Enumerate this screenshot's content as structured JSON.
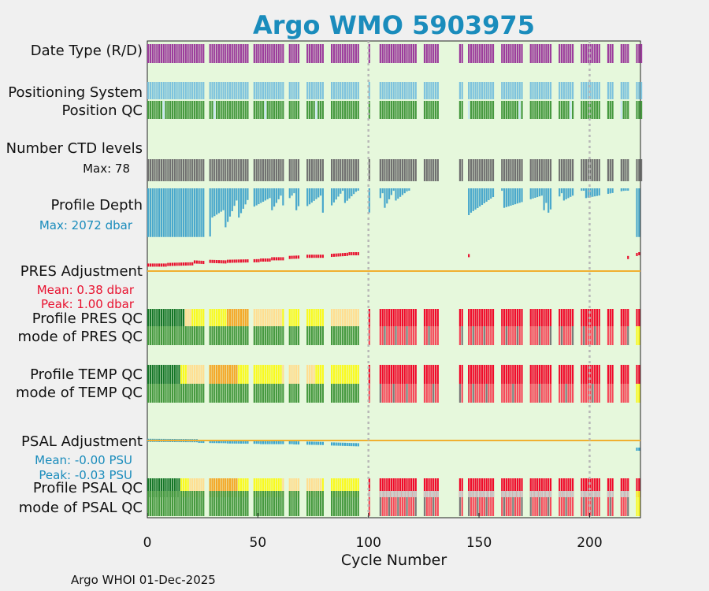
{
  "chart_data": {
    "type": "bar",
    "title": "Argo WMO 5903975",
    "xlabel": "Cycle Number",
    "xlim": [
      0,
      223
    ],
    "xticks": [
      0,
      50,
      100,
      150,
      200
    ],
    "gridlines_x": [
      100,
      200
    ],
    "footer": "Argo WHOI 01-Dec-2025",
    "rows": {
      "date_type": "Date Type (R/D)",
      "positioning": "Positioning System",
      "position_qc": "Position QC",
      "ctd_levels": "Number CTD levels",
      "ctd_max": "Max: 78",
      "profile_depth": "Profile Depth",
      "depth_max": "Max: 2072 dbar",
      "pres_adj": "PRES Adjustment",
      "pres_mean": "Mean: 0.38 dbar",
      "pres_peak": "Peak: 1.00 dbar",
      "profile_pres_qc": "Profile PRES QC",
      "mode_pres_qc": "mode of PRES QC",
      "profile_temp_qc": "Profile TEMP QC",
      "mode_temp_qc": "mode of TEMP QC",
      "psal_adj": "PSAL Adjustment",
      "psal_mean": "Mean: -0.00 PSU",
      "psal_peak": "Peak: -0.03 PSU",
      "profile_psal_qc": "Profile PSAL QC",
      "mode_psal_qc": "mode of PSAL QC"
    },
    "missing_ranges": [
      [
        26,
        27
      ],
      [
        46,
        47
      ],
      [
        62,
        63
      ],
      [
        69,
        71
      ],
      [
        80,
        82
      ],
      [
        96,
        99
      ],
      [
        101,
        104
      ],
      [
        122,
        124
      ],
      [
        132,
        140
      ],
      [
        143,
        144
      ],
      [
        157,
        159
      ],
      [
        170,
        172
      ],
      [
        183,
        185
      ],
      [
        193,
        195
      ],
      [
        205,
        207
      ],
      [
        211,
        213
      ],
      [
        218,
        220
      ]
    ],
    "profile_depth_dbar": [
      [
        0,
        2000,
        25,
        2000
      ],
      [
        26,
        1990,
        28,
        1980
      ],
      [
        29,
        1200,
        34,
        900
      ],
      [
        35,
        1600,
        40,
        500
      ],
      [
        41,
        1200,
        46,
        300
      ],
      [
        47,
        800,
        55,
        400
      ],
      [
        56,
        900,
        60,
        300
      ],
      [
        61,
        700,
        66,
        200
      ],
      [
        67,
        900,
        70,
        400
      ],
      [
        71,
        800,
        78,
        300
      ],
      [
        79,
        1000,
        80,
        600
      ],
      [
        83,
        700,
        88,
        100
      ],
      [
        89,
        600,
        95,
        50
      ],
      [
        100,
        1000,
        100,
        1000
      ],
      [
        104,
        600,
        106,
        200
      ],
      [
        107,
        800,
        111,
        100
      ],
      [
        112,
        500,
        118,
        50
      ],
      [
        145,
        1100,
        145,
        1100
      ],
      [
        146,
        1000,
        160,
        100
      ],
      [
        161,
        800,
        178,
        300
      ],
      [
        179,
        900,
        180,
        600
      ],
      [
        181,
        1000,
        187,
        200
      ],
      [
        188,
        500,
        197,
        50
      ],
      [
        198,
        400,
        218,
        50
      ],
      [
        220,
        2000,
        222,
        2000
      ]
    ],
    "date_type_colors": {
      "R": "#9c3d9c",
      "D": "#e6f8dc"
    },
    "positioning_color": "#7ec3dd",
    "position_qc_colors": {
      "good": "#46993f",
      "interpolated": "#c6e6f2"
    },
    "ctd_levels_color": "#707070",
    "profile_depth_color": "#4aa8cc",
    "pres_adjustment_dbar": [
      [
        0,
        0.1,
        8,
        0.1
      ],
      [
        9,
        0.15,
        20,
        0.2
      ],
      [
        21,
        0.35,
        26,
        0.3
      ],
      [
        27,
        0.4,
        35,
        0.35
      ],
      [
        36,
        0.4,
        50,
        0.45
      ],
      [
        51,
        0.5,
        55,
        0.5
      ],
      [
        56,
        0.6,
        62,
        0.6
      ],
      [
        63,
        0.7,
        70,
        0.75
      ],
      [
        71,
        0.8,
        80,
        0.8
      ],
      [
        81,
        0.85,
        90,
        0.95
      ],
      [
        91,
        1.0,
        98,
        1.0
      ],
      [
        143,
        0.8,
        145,
        0.85
      ],
      [
        217,
        0.7,
        222,
        1.0
      ]
    ],
    "psal_adjustment_psu": [
      [
        0,
        -0.002,
        22,
        -0.003
      ],
      [
        23,
        -0.005,
        35,
        -0.006
      ],
      [
        36,
        -0.007,
        50,
        -0.008
      ],
      [
        51,
        -0.009,
        65,
        -0.009
      ],
      [
        66,
        -0.01,
        80,
        -0.012
      ],
      [
        81,
        -0.013,
        95,
        -0.016
      ],
      [
        96,
        -0.017,
        99,
        -0.018
      ],
      [
        219,
        -0.03,
        222,
        -0.03
      ]
    ],
    "qc_colors": {
      "1": "#167628",
      "2": "#fafa1e",
      "3": "#f5a623",
      "4": "#f00a2a",
      "5": "#ffde90",
      "mode_good": "#46993f",
      "mode_bad": "#f54a5a",
      "mode_gray": "#7a7a7a",
      "mode_light": "#c8c8c8",
      "mode_yellow": "#fafa1e"
    },
    "pres_qc_segments": [
      [
        0,
        16,
        "1"
      ],
      [
        17,
        19,
        "5"
      ],
      [
        20,
        25,
        "2"
      ],
      [
        26,
        27,
        "5"
      ],
      [
        28,
        35,
        "2"
      ],
      [
        36,
        45,
        "3"
      ],
      [
        46,
        60,
        "5"
      ],
      [
        61,
        70,
        "2"
      ],
      [
        71,
        79,
        "2"
      ],
      [
        80,
        95,
        "5"
      ],
      [
        96,
        99,
        "1"
      ],
      [
        100,
        222,
        "4"
      ]
    ],
    "temp_qc_segments": [
      [
        0,
        14,
        "1"
      ],
      [
        15,
        17,
        "2"
      ],
      [
        18,
        25,
        "5"
      ],
      [
        26,
        40,
        "3"
      ],
      [
        41,
        60,
        "2"
      ],
      [
        61,
        75,
        "5"
      ],
      [
        76,
        95,
        "2"
      ],
      [
        96,
        99,
        "5"
      ],
      [
        100,
        222,
        "4"
      ]
    ],
    "psal_qc_segments": [
      [
        0,
        14,
        "1"
      ],
      [
        15,
        18,
        "2"
      ],
      [
        19,
        25,
        "5"
      ],
      [
        26,
        40,
        "3"
      ],
      [
        41,
        60,
        "2"
      ],
      [
        61,
        78,
        "5"
      ],
      [
        79,
        95,
        "2"
      ],
      [
        96,
        99,
        "5"
      ],
      [
        100,
        222,
        "4"
      ]
    ]
  }
}
